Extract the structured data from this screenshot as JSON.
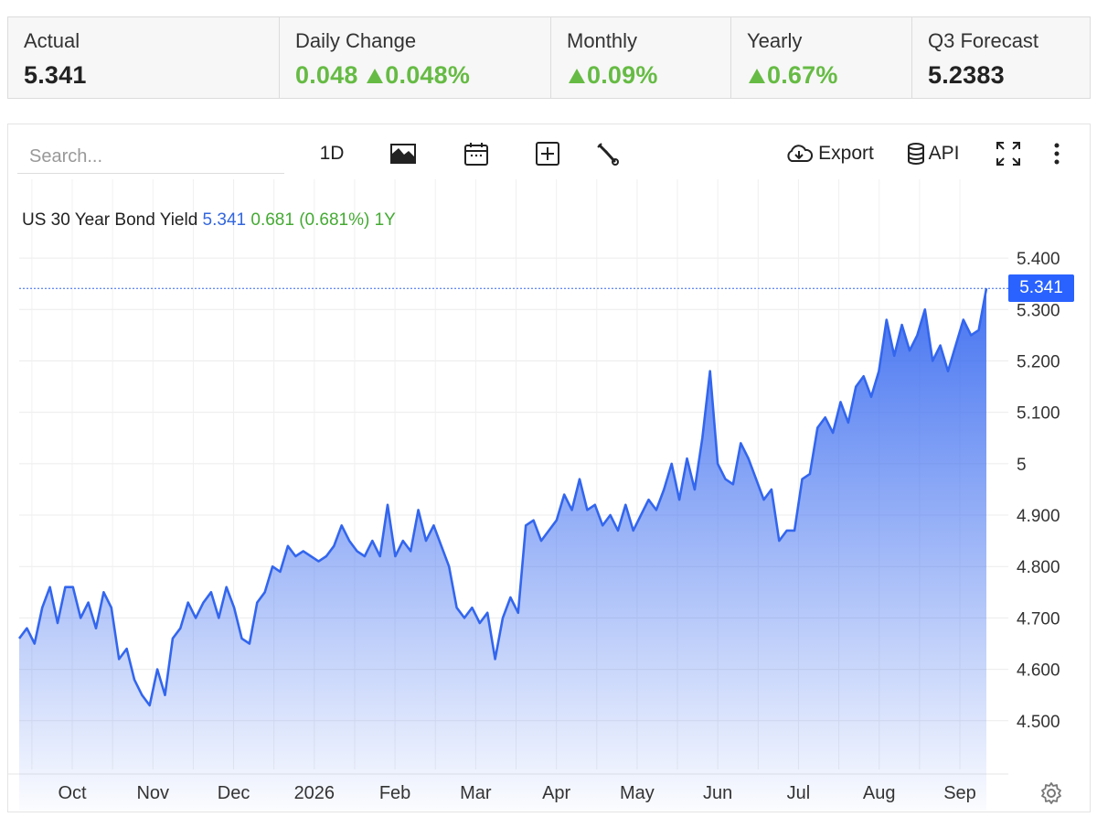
{
  "stats": [
    {
      "label": "Actual",
      "value": "5.341",
      "up": false,
      "arrow": false
    },
    {
      "label": "Daily Change",
      "value": "0.048",
      "value2": "0.048%",
      "up": true,
      "arrow": true
    },
    {
      "label": "Monthly",
      "value": "0.09%",
      "up": true,
      "arrow": true
    },
    {
      "label": "Yearly",
      "value": "0.67%",
      "up": true,
      "arrow": true
    },
    {
      "label": "Q3 Forecast",
      "value": "5.2383",
      "up": false,
      "arrow": false
    }
  ],
  "toolbar": {
    "search_placeholder": "Search...",
    "range_label": "1D",
    "export_label": "Export",
    "api_label": "API",
    "icons": [
      "area-chart-icon",
      "calendar-icon",
      "plus-box-icon",
      "wrench-icon",
      "cloud-download-icon",
      "database-icon",
      "fullscreen-icon",
      "more-vertical-icon",
      "gear-icon"
    ]
  },
  "legend": {
    "name": "US 30 Year Bond Yield",
    "last": "5.341",
    "change": "0.681 (0.681%) 1Y"
  },
  "colors": {
    "line": "#3366ee",
    "up": "#66bb44",
    "tag": "#2962ff"
  },
  "chart_data": {
    "type": "area",
    "series": [
      {
        "name": "US 30 Year Bond Yield",
        "values": [
          4.66,
          4.68,
          4.65,
          4.72,
          4.76,
          4.69,
          4.76,
          4.76,
          4.7,
          4.73,
          4.68,
          4.75,
          4.72,
          4.62,
          4.64,
          4.58,
          4.55,
          4.53,
          4.6,
          4.55,
          4.66,
          4.68,
          4.73,
          4.7,
          4.73,
          4.75,
          4.7,
          4.76,
          4.72,
          4.66,
          4.65,
          4.73,
          4.75,
          4.8,
          4.79,
          4.84,
          4.82,
          4.83,
          4.82,
          4.81,
          4.82,
          4.84,
          4.88,
          4.85,
          4.83,
          4.82,
          4.85,
          4.82,
          4.92,
          4.82,
          4.85,
          4.83,
          4.91,
          4.85,
          4.88,
          4.84,
          4.8,
          4.72,
          4.7,
          4.72,
          4.69,
          4.71,
          4.62,
          4.7,
          4.74,
          4.71,
          4.88,
          4.89,
          4.85,
          4.87,
          4.89,
          4.94,
          4.91,
          4.97,
          4.91,
          4.92,
          4.88,
          4.9,
          4.87,
          4.92,
          4.87,
          4.9,
          4.93,
          4.91,
          4.95,
          5.0,
          4.93,
          5.01,
          4.95,
          5.05,
          5.18,
          5.0,
          4.97,
          4.96,
          5.04,
          5.01,
          4.97,
          4.93,
          4.95,
          4.85,
          4.87,
          4.87,
          4.97,
          4.98,
          5.07,
          5.09,
          5.06,
          5.12,
          5.08,
          5.15,
          5.17,
          5.13,
          5.18,
          5.28,
          5.21,
          5.27,
          5.22,
          5.25,
          5.3,
          5.2,
          5.23,
          5.18,
          5.23,
          5.28,
          5.25,
          5.26,
          5.341
        ]
      }
    ],
    "x_labels": [
      "Oct",
      "Nov",
      "Dec",
      "2026",
      "Feb",
      "Mar",
      "Apr",
      "May",
      "Jun",
      "Jul",
      "Aug",
      "Sep"
    ],
    "y_ticks": [
      "5.400",
      "5.300",
      "5.200",
      "5.100",
      "5",
      "4.900",
      "4.800",
      "4.700",
      "4.600",
      "4.500"
    ],
    "ylim": [
      4.4,
      5.45
    ],
    "last_value_label": "5.341",
    "grid": true
  }
}
